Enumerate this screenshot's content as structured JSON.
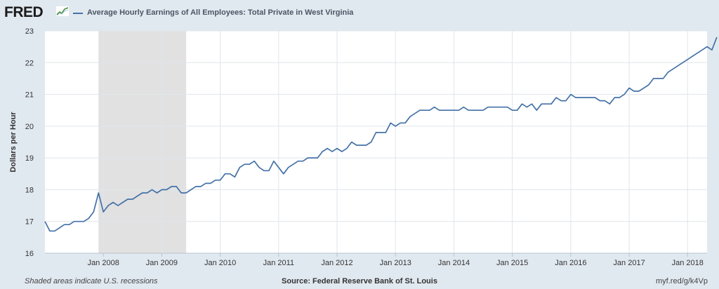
{
  "header": {
    "logo_text": "FRED",
    "badge_icon": "fred-chart-icon"
  },
  "legend": {
    "label": "Average Hourly Earnings of All Employees: Total Private in West Virginia",
    "color": "#4572a7"
  },
  "footer": {
    "note": "Shaded areas indicate U.S. recessions",
    "source": "Source: Federal Reserve Bank of St. Louis",
    "link": "myf.red/g/k4Vp"
  },
  "chart_data": {
    "type": "line",
    "title": "",
    "xlabel": "",
    "ylabel": "Dollars per Hour",
    "ylim": [
      16,
      23
    ],
    "yticks": [
      16,
      17,
      18,
      19,
      20,
      21,
      22,
      23
    ],
    "xlim": [
      "2007-01",
      "2018-05"
    ],
    "xtick_labels": [
      "Jan 2008",
      "Jan 2009",
      "Jan 2010",
      "Jan 2011",
      "Jan 2012",
      "Jan 2013",
      "Jan 2014",
      "Jan 2015",
      "Jan 2016",
      "Jan 2017",
      "Jan 2018"
    ],
    "grid": true,
    "recession": {
      "start": "2007-12",
      "end": "2009-06"
    },
    "series": [
      {
        "name": "Average Hourly Earnings of All Employees: Total Private in West Virginia",
        "color": "#4572a7",
        "start": "2007-01",
        "frequency": "monthly",
        "values": [
          17.0,
          16.7,
          16.7,
          16.8,
          16.9,
          16.9,
          17.0,
          17.0,
          17.0,
          17.1,
          17.3,
          17.9,
          17.3,
          17.5,
          17.6,
          17.5,
          17.6,
          17.7,
          17.7,
          17.8,
          17.9,
          17.9,
          18.0,
          17.9,
          18.0,
          18.0,
          18.1,
          18.1,
          17.9,
          17.9,
          18.0,
          18.1,
          18.1,
          18.2,
          18.2,
          18.3,
          18.3,
          18.5,
          18.5,
          18.4,
          18.7,
          18.8,
          18.8,
          18.9,
          18.7,
          18.6,
          18.6,
          18.9,
          18.7,
          18.5,
          18.7,
          18.8,
          18.9,
          18.9,
          19.0,
          19.0,
          19.0,
          19.2,
          19.3,
          19.2,
          19.3,
          19.2,
          19.3,
          19.5,
          19.4,
          19.4,
          19.4,
          19.5,
          19.8,
          19.8,
          19.8,
          20.1,
          20.0,
          20.1,
          20.1,
          20.3,
          20.4,
          20.5,
          20.5,
          20.5,
          20.6,
          20.5,
          20.5,
          20.5,
          20.5,
          20.5,
          20.6,
          20.5,
          20.5,
          20.5,
          20.5,
          20.6,
          20.6,
          20.6,
          20.6,
          20.6,
          20.5,
          20.5,
          20.7,
          20.6,
          20.7,
          20.5,
          20.7,
          20.7,
          20.7,
          20.9,
          20.8,
          20.8,
          21.0,
          20.9,
          20.9,
          20.9,
          20.9,
          20.9,
          20.8,
          20.8,
          20.7,
          20.9,
          20.9,
          21.0,
          21.2,
          21.1,
          21.1,
          21.2,
          21.3,
          21.5,
          21.5,
          21.5,
          21.7,
          21.8,
          21.9,
          22.0,
          22.1,
          22.2,
          22.3,
          22.4,
          22.5,
          22.4,
          22.8
        ]
      }
    ]
  }
}
